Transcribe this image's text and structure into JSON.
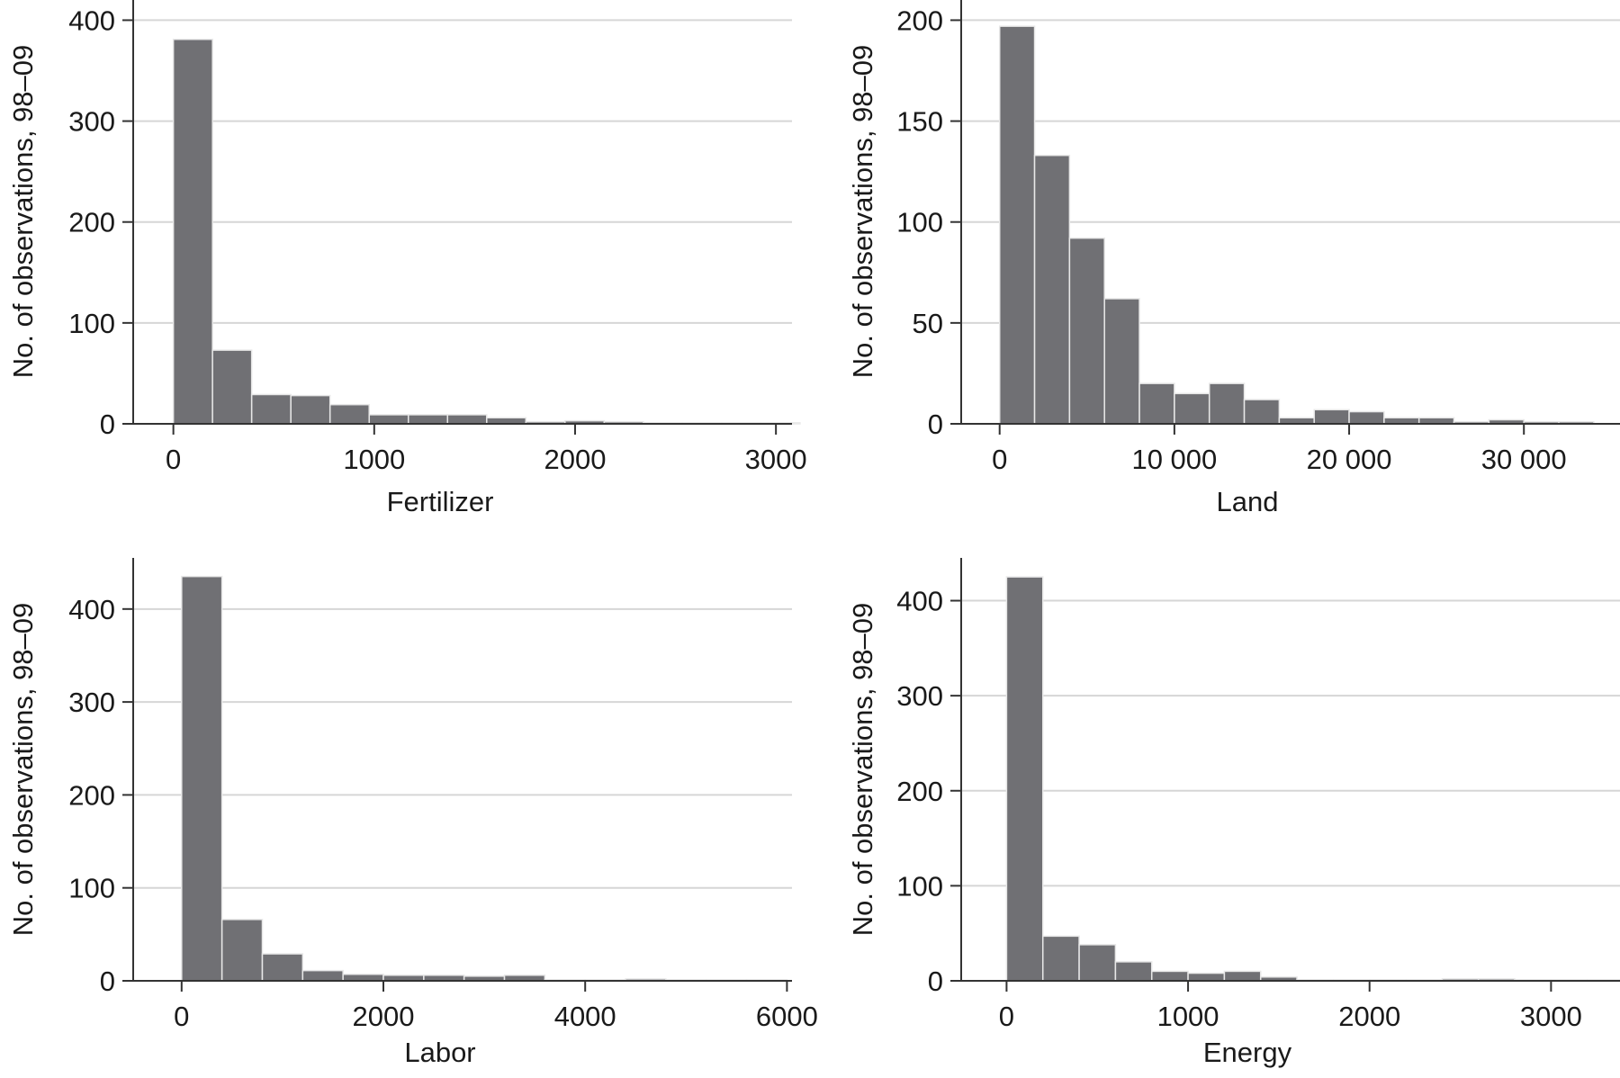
{
  "chart_data": [
    {
      "type": "bar",
      "panel": "top-left",
      "xlabel": "Fertilizer",
      "ylabel": "No. of observations, 98–09",
      "bin_width": 195,
      "x_start": 0,
      "values": [
        381,
        73,
        29,
        28,
        19,
        9,
        9,
        9,
        6,
        2,
        3,
        2,
        1,
        1,
        1,
        1
      ],
      "xlim": [
        -200,
        3080
      ],
      "ylim": [
        0,
        420
      ],
      "xticks": [
        0,
        1000,
        2000,
        3000
      ],
      "xtick_labels": [
        "0",
        "1000",
        "2000",
        "3000"
      ],
      "yticks": [
        0,
        100,
        200,
        300,
        400
      ],
      "ytick_labels": [
        "0",
        "100",
        "200",
        "300",
        "400"
      ],
      "grid": true,
      "bar_color": "#707074"
    },
    {
      "type": "bar",
      "panel": "top-right",
      "xlabel": "Land",
      "ylabel": "No. of observations, 98–09",
      "bin_width": 2000,
      "x_start": 0,
      "values": [
        197,
        133,
        92,
        62,
        20,
        15,
        20,
        12,
        3,
        7,
        6,
        3,
        3,
        1,
        2,
        1,
        1
      ],
      "xlim": [
        -2200,
        35500
      ],
      "ylim": [
        0,
        210
      ],
      "xticks": [
        0,
        10000,
        20000,
        30000
      ],
      "xtick_labels": [
        "0",
        "10 000",
        "20 000",
        "30 000"
      ],
      "yticks": [
        0,
        50,
        100,
        150,
        200
      ],
      "ytick_labels": [
        "0",
        "50",
        "100",
        "150",
        "200"
      ],
      "grid": true,
      "bar_color": "#707074"
    },
    {
      "type": "bar",
      "panel": "bottom-left",
      "xlabel": "Labor",
      "ylabel": "No. of observations, 98–09",
      "bin_width": 400,
      "x_start": 0,
      "values": [
        435,
        66,
        29,
        11,
        7,
        6,
        6,
        5,
        6,
        1,
        1,
        2,
        1,
        1,
        1
      ],
      "xlim": [
        -480,
        6050
      ],
      "ylim": [
        0,
        455
      ],
      "xticks": [
        0,
        2000,
        4000,
        6000
      ],
      "xtick_labels": [
        "0",
        "2000",
        "4000",
        "6000"
      ],
      "yticks": [
        0,
        100,
        200,
        300,
        400
      ],
      "ytick_labels": [
        "0",
        "100",
        "200",
        "300",
        "400"
      ],
      "grid": true,
      "bar_color": "#707074"
    },
    {
      "type": "bar",
      "panel": "bottom-right",
      "xlabel": "Energy",
      "ylabel": "No. of observations, 98–09",
      "bin_width": 200,
      "x_start": 0,
      "values": [
        425,
        47,
        38,
        20,
        10,
        8,
        10,
        4,
        1,
        1,
        1,
        1,
        2,
        2,
        1,
        1,
        1
      ],
      "xlim": [
        -250,
        3380
      ],
      "ylim": [
        0,
        445
      ],
      "xticks": [
        0,
        1000,
        2000,
        3000
      ],
      "xtick_labels": [
        "0",
        "1000",
        "2000",
        "3000"
      ],
      "yticks": [
        0,
        100,
        200,
        300,
        400
      ],
      "ytick_labels": [
        "0",
        "100",
        "200",
        "300",
        "400"
      ],
      "grid": true,
      "bar_color": "#707074"
    }
  ]
}
